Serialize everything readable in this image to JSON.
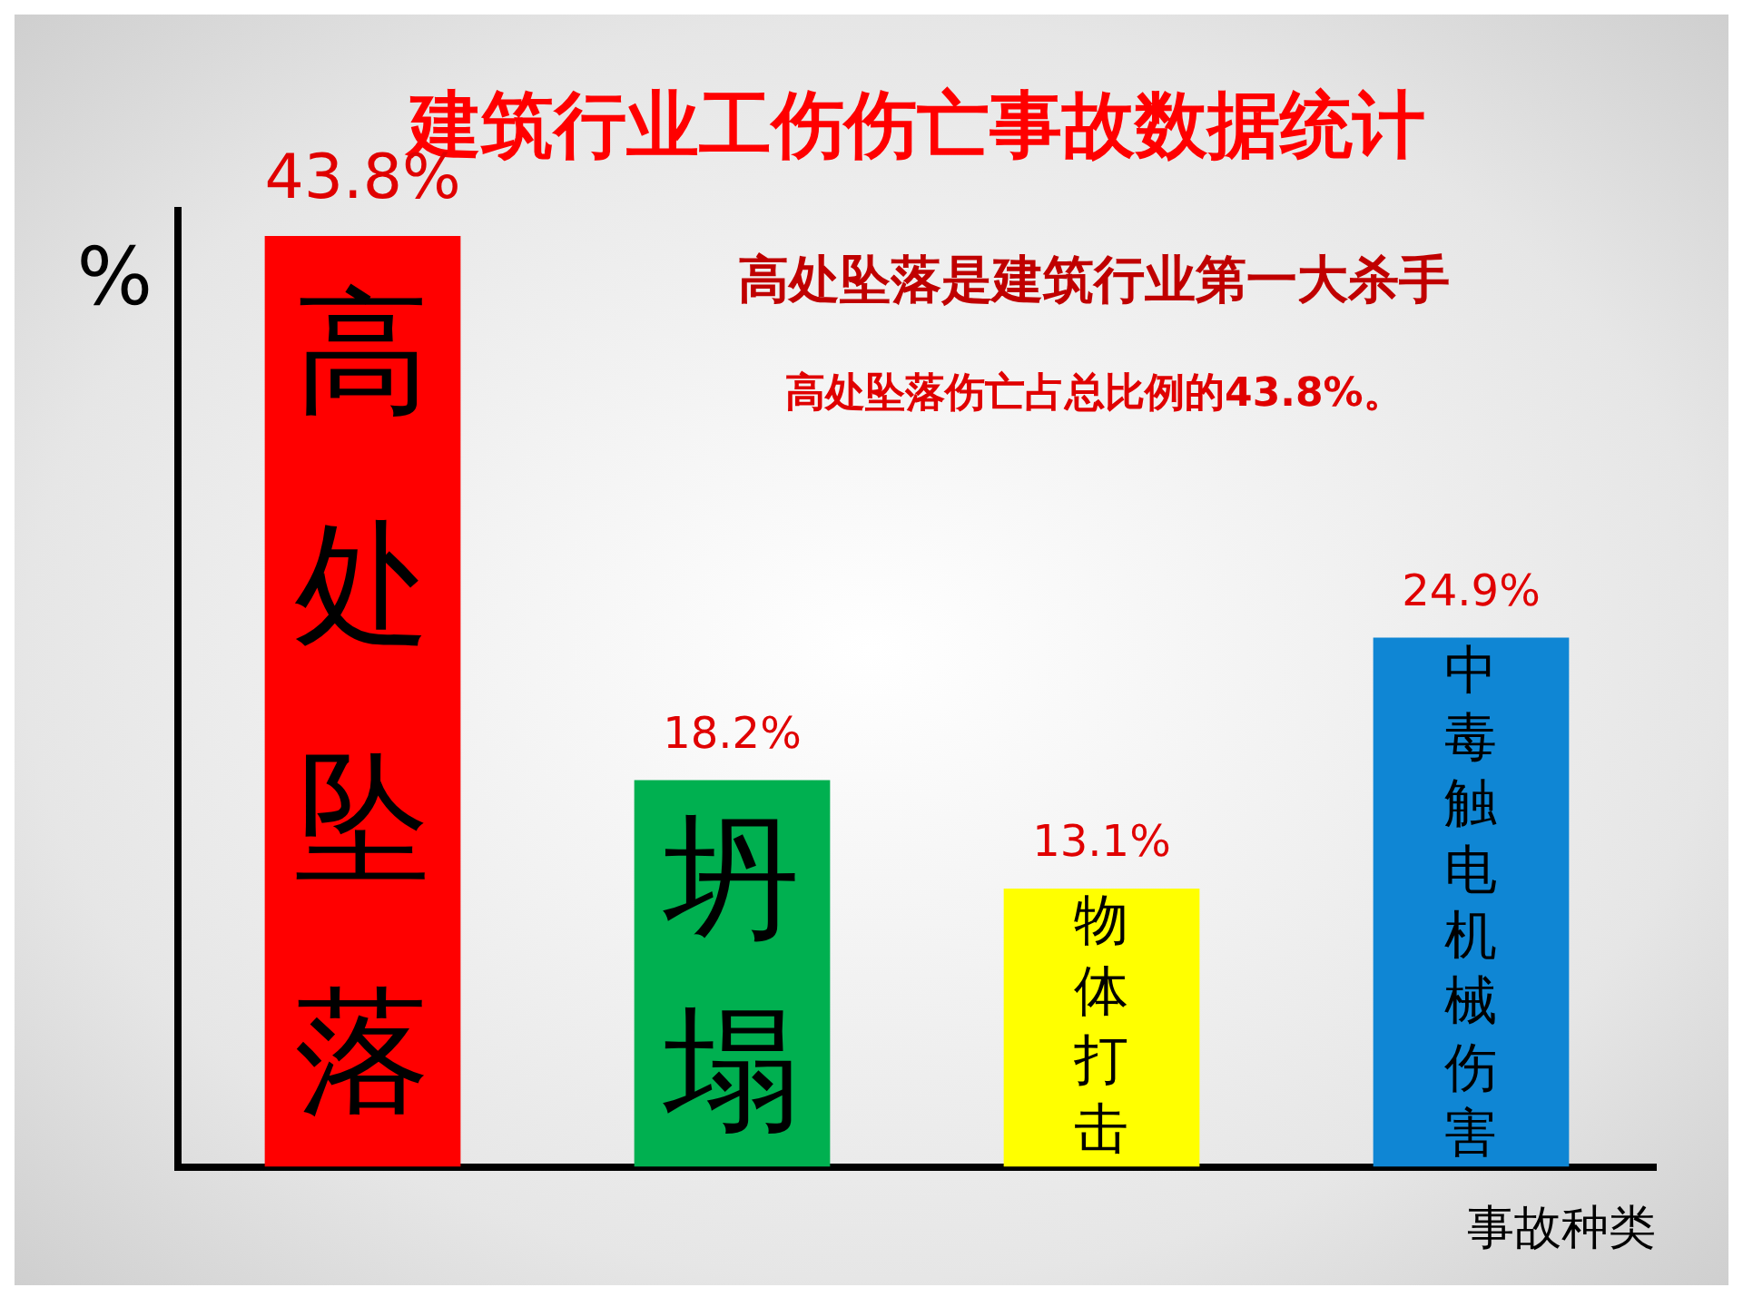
{
  "chart_data": {
    "type": "bar",
    "title": "建筑行业工伤伤亡事故数据统计",
    "xlabel": "事故种类",
    "ylabel": "%",
    "categories": [
      "高处坠落",
      "坍塌",
      "物体打击",
      "中毒触电机械伤害"
    ],
    "values": [
      43.8,
      18.2,
      13.1,
      24.9
    ],
    "colors": [
      "#ff0000",
      "#00b050",
      "#ffff00",
      "#0f86d4"
    ],
    "value_labels": [
      "43.8%",
      "18.2%",
      "13.1%",
      "24.9%"
    ],
    "annotations": [
      "高处坠落是建筑行业第一大杀手",
      "高处坠落伤亡占总比例的43.8%。"
    ],
    "grid": false,
    "legend": false
  }
}
